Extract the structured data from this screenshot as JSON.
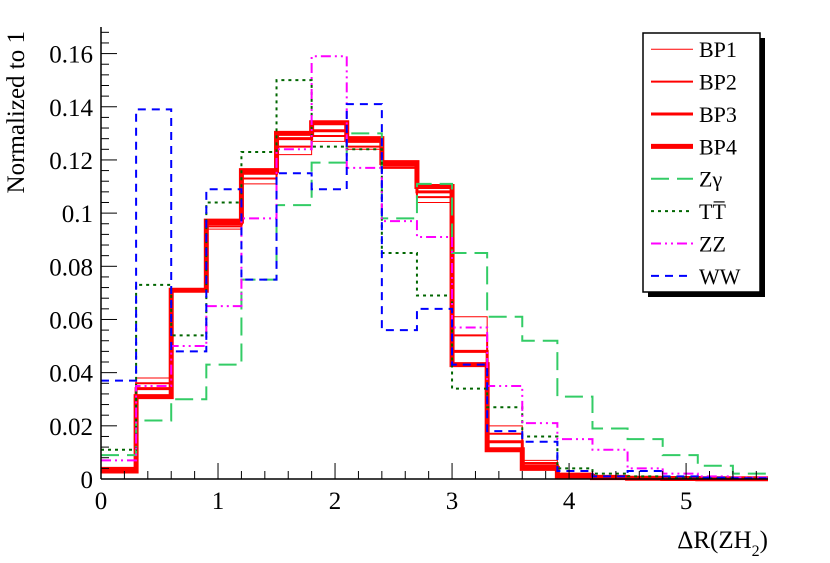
{
  "chart_data": {
    "type": "line",
    "xlabel": "ΔR(ZH",
    "xlabel_sub": "2",
    "xlabel_close": ")",
    "ylabel": "Normalized to 1",
    "xlim": [
      0,
      5.7
    ],
    "ylim": [
      0,
      0.17
    ],
    "x_ticks": [
      "0",
      "1",
      "2",
      "3",
      "4",
      "5"
    ],
    "y_ticks": [
      "0",
      "0.02",
      "0.04",
      "0.06",
      "0.08",
      "0.1",
      "0.12",
      "0.14",
      "0.16"
    ],
    "bin_edges": [
      0,
      0.3,
      0.6,
      0.9,
      1.2,
      1.5,
      1.8,
      2.1,
      2.4,
      2.7,
      3.0,
      3.3,
      3.6,
      3.9,
      4.2,
      4.5,
      4.8,
      5.1,
      5.4,
      5.7
    ],
    "legend_position": "top-right",
    "series": [
      {
        "name": "BP1",
        "color": "#ff0000",
        "style": "solid",
        "width": 1,
        "values": [
          0.004,
          0.038,
          0.071,
          0.094,
          0.111,
          0.122,
          0.127,
          0.124,
          0.117,
          0.104,
          0.061,
          0.02,
          0.007,
          0.002,
          0.001,
          0.0005,
          0.0003,
          0.0002,
          0.0001
        ]
      },
      {
        "name": "BP2",
        "color": "#ff0000",
        "style": "solid",
        "width": 2,
        "values": [
          0.004,
          0.036,
          0.071,
          0.095,
          0.113,
          0.125,
          0.129,
          0.125,
          0.117,
          0.106,
          0.054,
          0.017,
          0.006,
          0.002,
          0.001,
          0.0005,
          0.0003,
          0.0002,
          0.0001
        ]
      },
      {
        "name": "BP3",
        "color": "#ff0000",
        "style": "solid",
        "width": 3,
        "values": [
          0.004,
          0.034,
          0.071,
          0.096,
          0.115,
          0.128,
          0.131,
          0.127,
          0.118,
          0.108,
          0.048,
          0.014,
          0.005,
          0.0015,
          0.001,
          0.0005,
          0.0003,
          0.0002,
          0.0001
        ]
      },
      {
        "name": "BP4",
        "color": "#ff0000",
        "style": "solid",
        "width": 5,
        "values": [
          0.003,
          0.031,
          0.071,
          0.097,
          0.116,
          0.13,
          0.134,
          0.128,
          0.119,
          0.11,
          0.043,
          0.011,
          0.004,
          0.001,
          0.0005,
          0.0003,
          0.0002,
          0.0001,
          0.0001
        ]
      },
      {
        "name": "Zγ",
        "color": "#33cc66",
        "style": "longdash",
        "width": 2,
        "values": [
          0.009,
          0.022,
          0.03,
          0.043,
          0.075,
          0.103,
          0.119,
          0.13,
          0.098,
          0.111,
          0.085,
          0.061,
          0.052,
          0.031,
          0.019,
          0.015,
          0.009,
          0.005,
          0.002
        ]
      },
      {
        "name": "TT̅",
        "color": "#006600",
        "style": "dotted",
        "width": 2,
        "values": [
          0.011,
          0.073,
          0.054,
          0.104,
          0.123,
          0.15,
          0.125,
          0.124,
          0.085,
          0.069,
          0.034,
          0.027,
          0.016,
          0.004,
          0.002,
          0.001,
          0.0005,
          0.0003,
          0.0002
        ]
      },
      {
        "name": "ZZ",
        "color": "#ff00ff",
        "style": "dashdotdot",
        "width": 2,
        "values": [
          0.007,
          0.035,
          0.05,
          0.065,
          0.098,
          0.124,
          0.159,
          0.117,
          0.097,
          0.091,
          0.057,
          0.035,
          0.021,
          0.015,
          0.011,
          0.004,
          0.002,
          0.001,
          0.0005
        ]
      },
      {
        "name": "WW",
        "color": "#0000ff",
        "style": "dashed",
        "width": 2,
        "values": [
          0.037,
          0.139,
          0.048,
          0.109,
          0.075,
          0.115,
          0.109,
          0.141,
          0.056,
          0.064,
          0.043,
          0.018,
          0.014,
          0.003,
          0.001,
          0.003,
          0.001,
          0.0005,
          0.0003
        ]
      }
    ]
  }
}
